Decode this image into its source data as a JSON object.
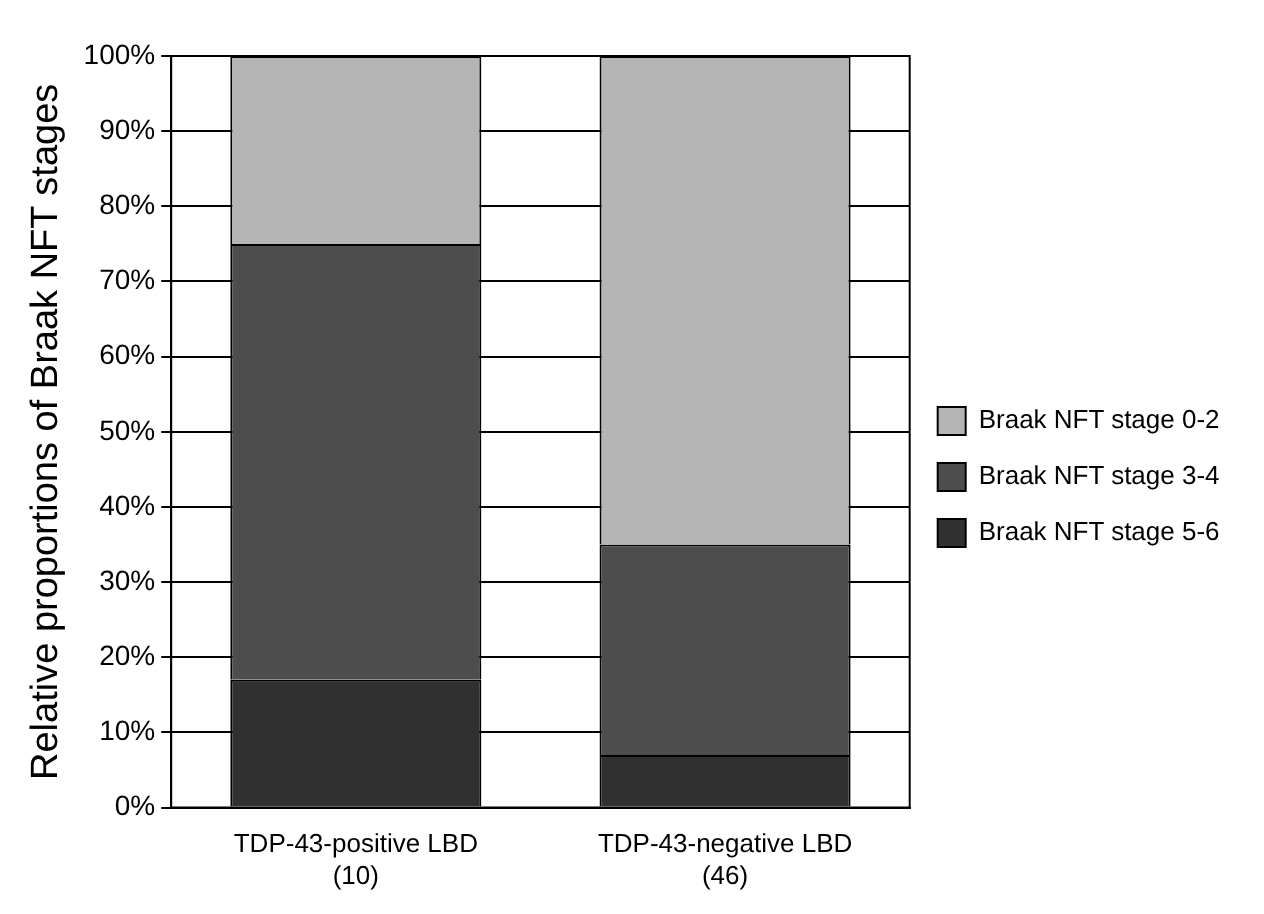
{
  "chart_data": {
    "type": "bar",
    "stacked": true,
    "ylabel": "Relative proportions of Braak NFT stages",
    "categories": [
      "TDP-43-positive LBD\n(10)",
      "TDP-43-negative LBD\n(46)"
    ],
    "series": [
      {
        "name": "Braak NFT stage 5-6",
        "color": "#303030",
        "values": [
          17,
          7
        ]
      },
      {
        "name": "Braak NFT stage 3-4",
        "color": "#4d4d4d",
        "values": [
          58,
          28
        ]
      },
      {
        "name": "Braak NFT stage 0-2",
        "color": "#b5b5b5",
        "values": [
          25,
          65
        ]
      }
    ],
    "ylim": [
      0,
      100
    ],
    "yticks": [
      {
        "value": 0,
        "label": "0%"
      },
      {
        "value": 10,
        "label": "10%"
      },
      {
        "value": 20,
        "label": "20%"
      },
      {
        "value": 30,
        "label": "30%"
      },
      {
        "value": 40,
        "label": "40%"
      },
      {
        "value": 50,
        "label": "50%"
      },
      {
        "value": 60,
        "label": "60%"
      },
      {
        "value": 70,
        "label": "70%"
      },
      {
        "value": 80,
        "label": "80%"
      },
      {
        "value": 90,
        "label": "90%"
      },
      {
        "value": 100,
        "label": "100%"
      }
    ],
    "grid": "y",
    "legend": "right"
  }
}
